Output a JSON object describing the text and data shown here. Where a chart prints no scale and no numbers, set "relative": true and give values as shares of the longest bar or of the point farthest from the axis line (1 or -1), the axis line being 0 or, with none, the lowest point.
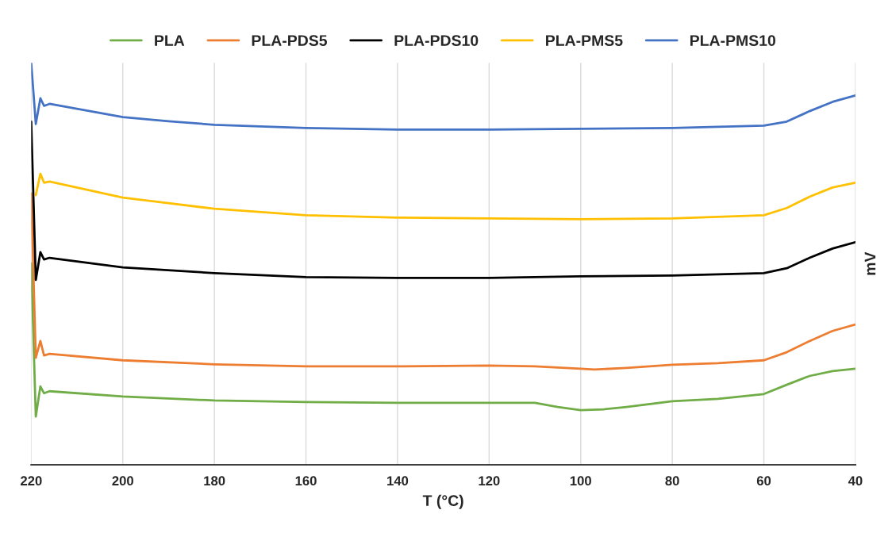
{
  "chart_data": {
    "type": "line",
    "relative": true,
    "xlabel": "T (°C)",
    "ylabel": "mV",
    "xlim": [
      220,
      40
    ],
    "xticks": [
      220,
      200,
      180,
      160,
      140,
      120,
      100,
      80,
      60,
      40
    ],
    "grid": "x",
    "legend": "top",
    "line_style": "solid",
    "marker": "none",
    "series": [
      {
        "name": "PLA",
        "color": "#70ad47",
        "x": [
          220,
          219,
          218,
          217.2,
          216,
          200,
          180,
          160,
          140,
          120,
          110,
          105,
          100,
          95,
          90,
          80,
          70,
          60,
          55,
          50,
          45,
          40
        ],
        "values": [
          0.501,
          0.12,
          0.195,
          0.178,
          0.183,
          0.17,
          0.16,
          0.156,
          0.154,
          0.154,
          0.154,
          0.144,
          0.136,
          0.138,
          0.144,
          0.158,
          0.164,
          0.176,
          0.199,
          0.221,
          0.233,
          0.239
        ]
      },
      {
        "name": "PLA-PDS5",
        "color": "#ed7d31",
        "x": [
          220,
          219,
          218,
          217.2,
          216,
          200,
          180,
          160,
          140,
          120,
          110,
          100,
          97,
          90,
          80,
          70,
          60,
          55,
          50,
          45,
          40
        ],
        "values": [
          0.675,
          0.266,
          0.308,
          0.272,
          0.276,
          0.26,
          0.25,
          0.245,
          0.245,
          0.247,
          0.245,
          0.239,
          0.237,
          0.241,
          0.249,
          0.253,
          0.26,
          0.28,
          0.308,
          0.333,
          0.349
        ]
      },
      {
        "name": "PLA-PDS10",
        "color": "#000000",
        "x": [
          220,
          219,
          218,
          217.2,
          216,
          200,
          180,
          160,
          140,
          120,
          100,
          80,
          60,
          55,
          50,
          45,
          40
        ],
        "values": [
          0.854,
          0.46,
          0.529,
          0.511,
          0.515,
          0.491,
          0.477,
          0.467,
          0.465,
          0.465,
          0.469,
          0.471,
          0.477,
          0.489,
          0.515,
          0.538,
          0.554
        ]
      },
      {
        "name": "PLA-PMS5",
        "color": "#ffc000",
        "x": [
          219,
          218,
          217.2,
          216,
          200,
          180,
          160,
          140,
          120,
          100,
          80,
          60,
          55,
          50,
          45,
          40
        ],
        "values": [
          0.671,
          0.724,
          0.702,
          0.705,
          0.665,
          0.637,
          0.621,
          0.615,
          0.613,
          0.611,
          0.613,
          0.621,
          0.639,
          0.667,
          0.69,
          0.702
        ]
      },
      {
        "name": "PLA-PMS10",
        "color": "#4472c4",
        "x": [
          220,
          219,
          218,
          217.2,
          216,
          200,
          190,
          180,
          160,
          140,
          120,
          100,
          80,
          60,
          55,
          50,
          45,
          40
        ],
        "values": [
          1.0,
          0.848,
          0.912,
          0.893,
          0.898,
          0.865,
          0.855,
          0.846,
          0.838,
          0.834,
          0.834,
          0.836,
          0.838,
          0.844,
          0.854,
          0.88,
          0.903,
          0.919
        ]
      }
    ]
  }
}
